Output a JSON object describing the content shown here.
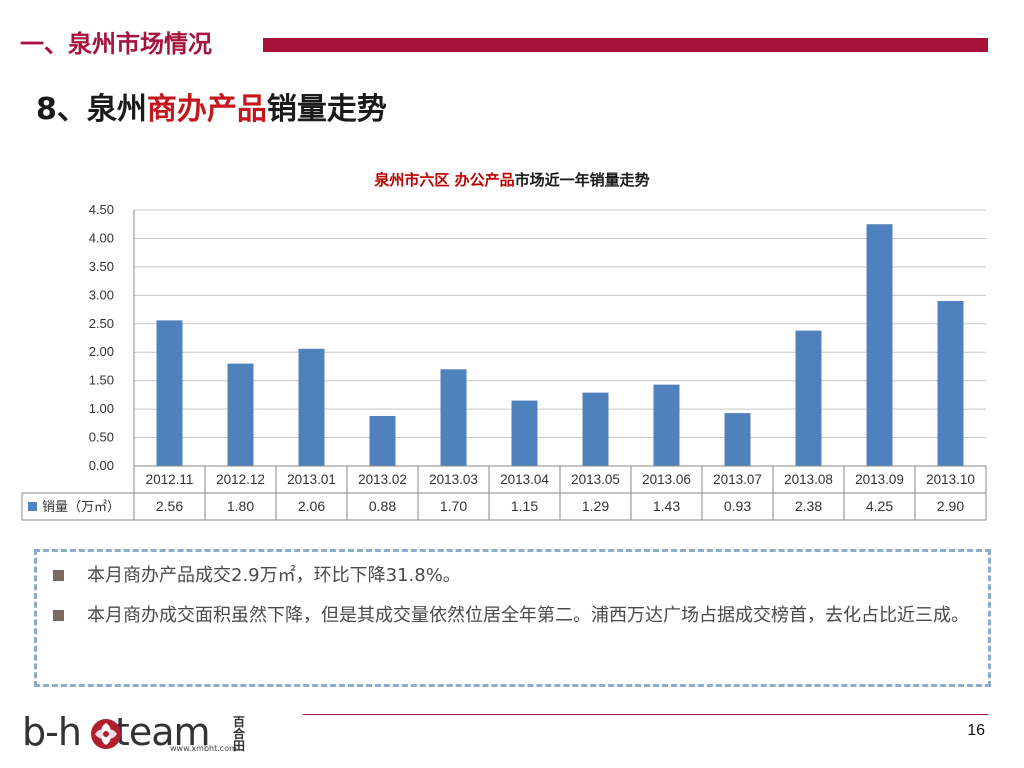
{
  "header": {
    "section_title": "一、泉州市场情况",
    "slide_title_prefix": "8、泉州",
    "slide_title_highlight": "商办产品",
    "slide_title_suffix": "销量走势"
  },
  "chart_title": {
    "red_part": "泉州市六区 办公产品",
    "black_part": "市场近一年销量走势"
  },
  "chart_data": {
    "type": "bar",
    "title": "泉州市六区 办公产品市场近一年销量走势",
    "categories": [
      "2012.11",
      "2012.12",
      "2013.01",
      "2013.02",
      "2013.03",
      "2013.04",
      "2013.05",
      "2013.06",
      "2013.07",
      "2013.08",
      "2013.09",
      "2013.10"
    ],
    "series": [
      {
        "name": "销量（万㎡）",
        "values": [
          2.56,
          1.8,
          2.06,
          0.88,
          1.7,
          1.15,
          1.29,
          1.43,
          0.93,
          2.38,
          4.25,
          2.9
        ]
      }
    ],
    "value_labels": [
      "2.56",
      "1.80",
      "2.06",
      "0.88",
      "1.70",
      "1.15",
      "1.29",
      "1.43",
      "0.93",
      "2.38",
      "4.25",
      "2.90"
    ],
    "y_ticks": [
      "0.00",
      "0.50",
      "1.00",
      "1.50",
      "2.00",
      "2.50",
      "3.00",
      "3.50",
      "4.00",
      "4.50"
    ],
    "ylim": [
      0,
      4.5
    ],
    "grid": true,
    "legend": "data-table",
    "bar_color": "#4f81bd"
  },
  "notes": [
    "本月商办产品成交2.9万㎡，环比下降31.8%。",
    "本月商办成交面积虽然下降，但是其成交量依然位居全年第二。浦西万达广场占据成交榜首，去化占比近三成。"
  ],
  "footer": {
    "logo_left": "b-h",
    "logo_right": "team",
    "logo_cn": "百合田",
    "logo_url": "www.xmbht.com",
    "page_number": "16"
  },
  "colors": {
    "brand": "#a5123a",
    "highlight": "#c4161c",
    "bar": "#4f81bd",
    "notes_border": "#8eabc9"
  }
}
